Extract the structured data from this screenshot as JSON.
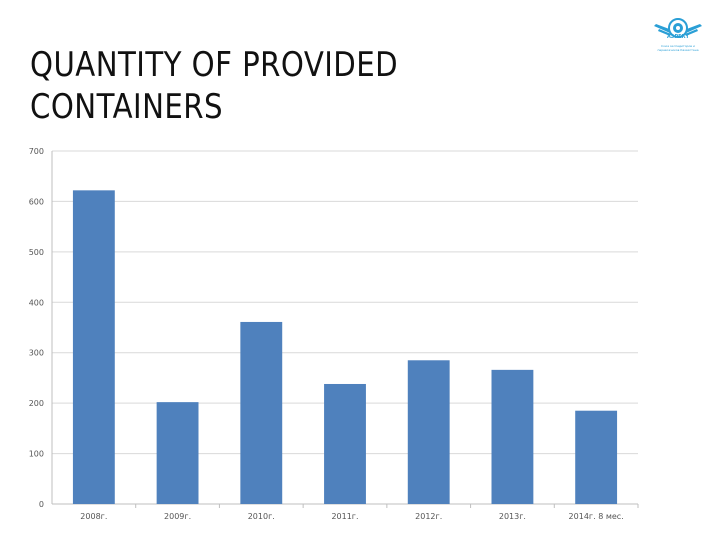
{
  "title": "QUANTITY OF PROVIDED CONTAINERS",
  "logo": {
    "name": "АЭРЕКТ",
    "tagline": "Союз экспедиторов и перевозчиков Казахстана"
  },
  "chart_data": {
    "type": "bar",
    "title": "QUANTITY OF PROVIDED CONTAINERS",
    "categories": [
      "2008г.",
      "2009г.",
      "2010г.",
      "2011г.",
      "2012г.",
      "2013г.",
      "2014г. 8 мес."
    ],
    "values": [
      622,
      202,
      361,
      238,
      285,
      266,
      185
    ],
    "ylim": [
      0,
      700
    ],
    "yticks": [
      "0",
      "100",
      "200",
      "300",
      "400",
      "500",
      "600",
      "700"
    ],
    "grid": true,
    "bar_color": "#4f81bd",
    "xlabel": "",
    "ylabel": ""
  }
}
